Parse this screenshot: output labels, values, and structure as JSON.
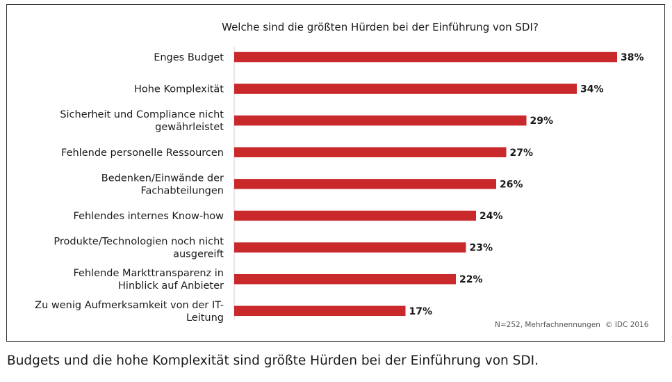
{
  "chart_data": {
    "type": "bar",
    "orientation": "horizontal",
    "title": "Welche sind die größten Hürden bei der Einführung von SDI?",
    "categories": [
      [
        "Enges Budget"
      ],
      [
        "Hohe Komplexität"
      ],
      [
        "Sicherheit und Compliance nicht",
        "gewährleistet"
      ],
      [
        "Fehlende personelle Ressourcen"
      ],
      [
        "Bedenken/Einwände der",
        "Fachabteilungen"
      ],
      [
        "Fehlendes internes Know-how"
      ],
      [
        "Produkte/Technologien noch nicht",
        "ausgereift"
      ],
      [
        "Fehlende Markttransparenz in",
        "Hinblick auf Anbieter"
      ],
      [
        "Zu wenig Aufmerksamkeit von der IT-",
        "Leitung"
      ]
    ],
    "values": [
      38,
      34,
      29,
      27,
      26,
      24,
      23,
      22,
      17
    ],
    "value_labels": [
      "38%",
      "34%",
      "29%",
      "27%",
      "26%",
      "24%",
      "23%",
      "22%",
      "17%"
    ],
    "xlim": [
      0,
      38
    ],
    "bar_color": "#c9292b",
    "grid": false,
    "legend": "none",
    "footnote": "N=252, Mehrfachnennungen",
    "copyright": "© IDC 2016"
  },
  "caption": "Budgets und die hohe Komplexität sind größte Hürden bei der Einführung von SDI."
}
